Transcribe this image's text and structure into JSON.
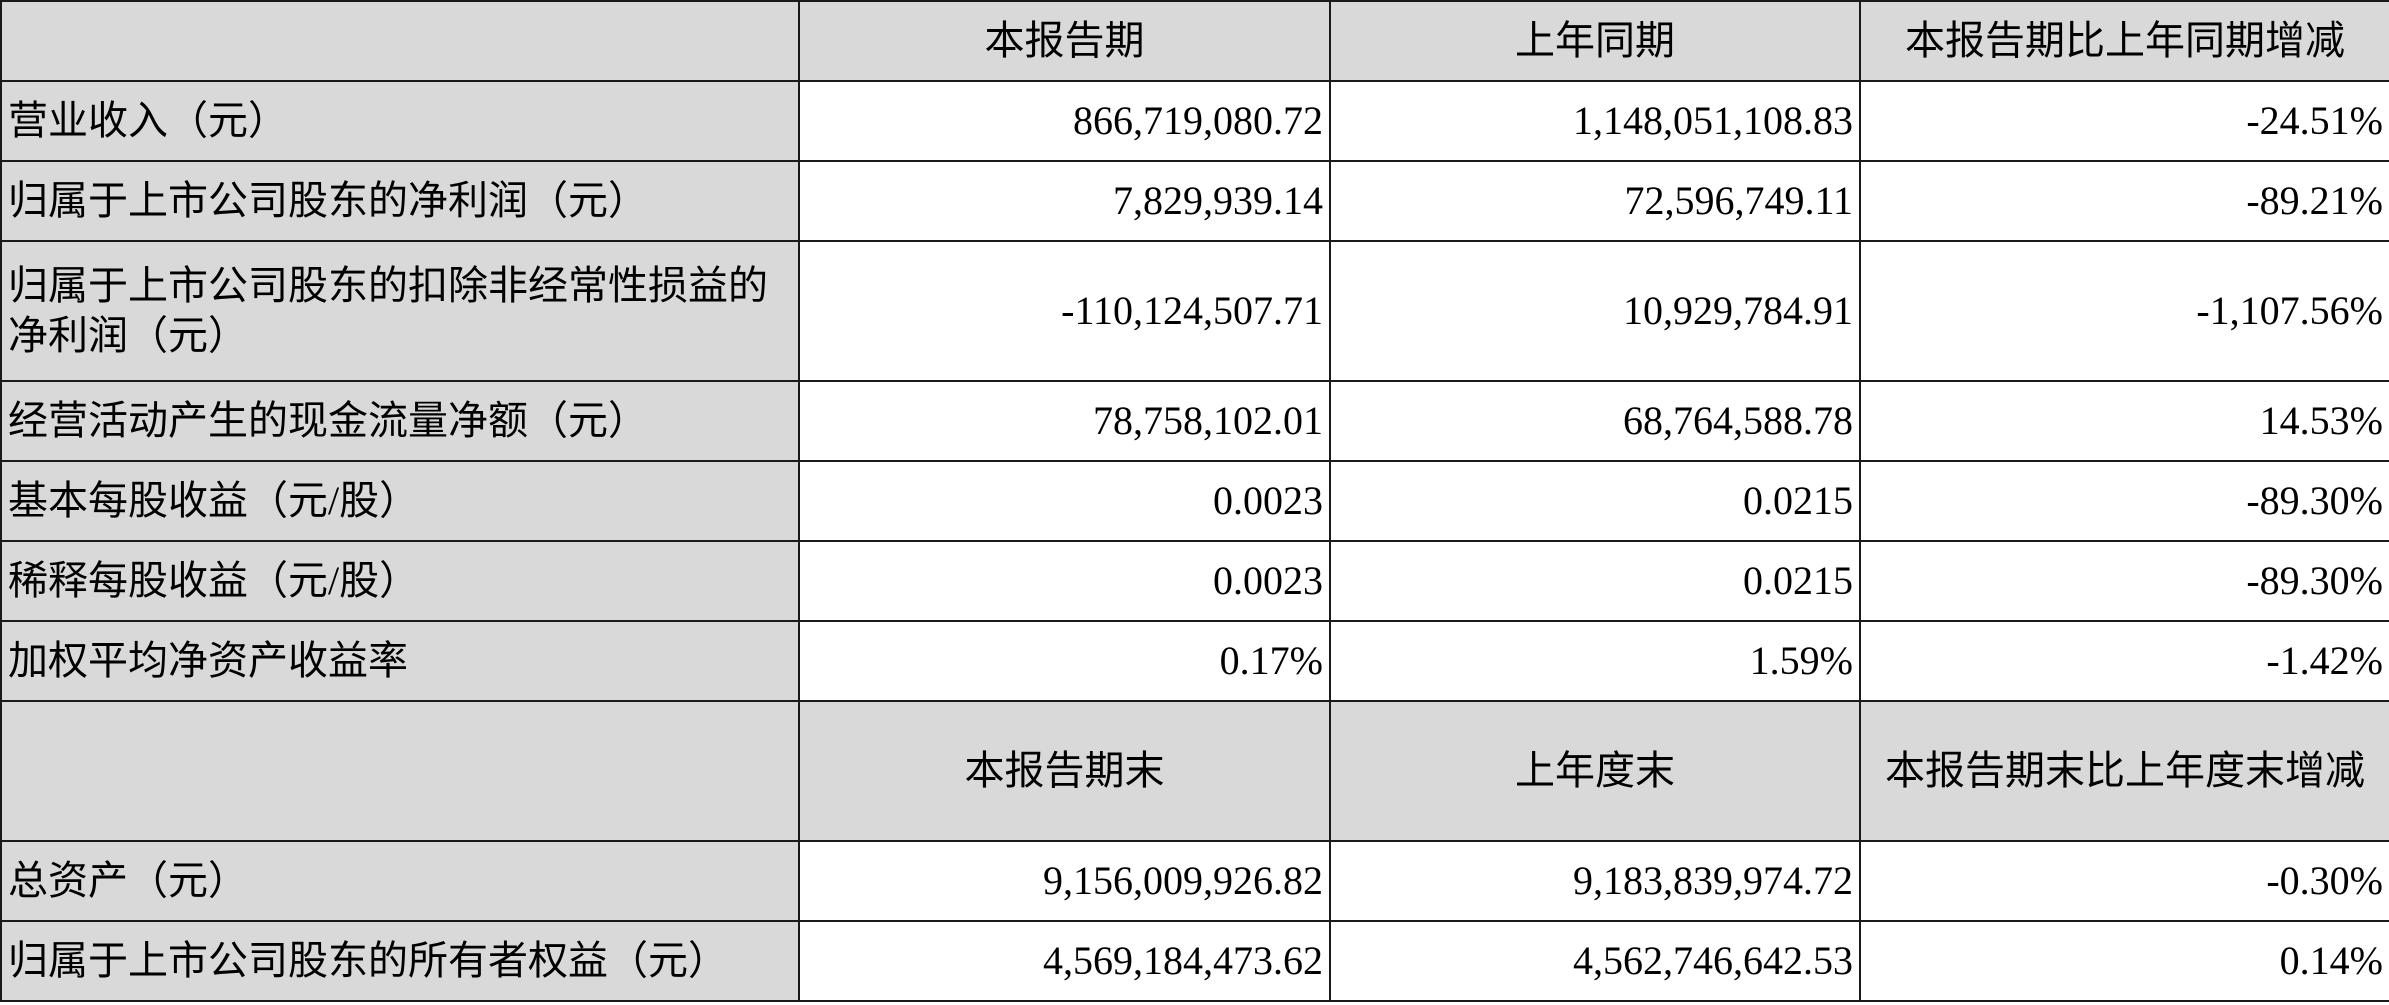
{
  "header1": {
    "corner": "",
    "cols": [
      "本报告期",
      "上年同期",
      "本报告期比上年同期增减"
    ]
  },
  "rows1": [
    {
      "label": "营业收入（元）",
      "current": "866,719,080.72",
      "prior": "1,148,051,108.83",
      "change": "-24.51%"
    },
    {
      "label": "归属于上市公司股东的净利润（元）",
      "current": "7,829,939.14",
      "prior": "72,596,749.11",
      "change": "-89.21%"
    },
    {
      "label": "归属于上市公司股东的扣除非经常性损益的净利润（元）",
      "current": "-110,124,507.71",
      "prior": "10,929,784.91",
      "change": "-1,107.56%"
    },
    {
      "label": "经营活动产生的现金流量净额（元）",
      "current": "78,758,102.01",
      "prior": "68,764,588.78",
      "change": "14.53%"
    },
    {
      "label": "基本每股收益（元/股）",
      "current": "0.0023",
      "prior": "0.0215",
      "change": "-89.30%"
    },
    {
      "label": "稀释每股收益（元/股）",
      "current": "0.0023",
      "prior": "0.0215",
      "change": "-89.30%"
    },
    {
      "label": "加权平均净资产收益率",
      "current": "0.17%",
      "prior": "1.59%",
      "change": "-1.42%"
    }
  ],
  "header2": {
    "corner": "",
    "cols": [
      "本报告期末",
      "上年度末",
      "本报告期末比上年度末增减"
    ]
  },
  "rows2": [
    {
      "label": "总资产（元）",
      "current": "9,156,009,926.82",
      "prior": "9,183,839,974.72",
      "change": "-0.30%"
    },
    {
      "label": "归属于上市公司股东的所有者权益（元）",
      "current": "4,569,184,473.62",
      "prior": "4,562,746,642.53",
      "change": "0.14%"
    }
  ]
}
